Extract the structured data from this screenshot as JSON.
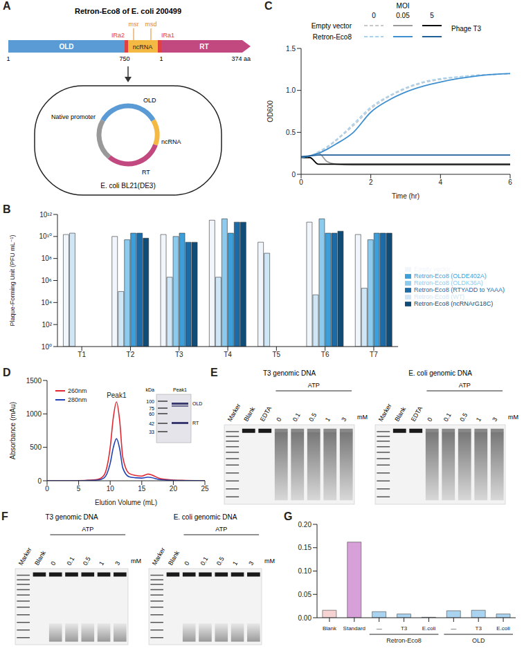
{
  "diagram": {
    "panel": "A",
    "title": "Retron-Eco8 of E. coli 200499",
    "genes": {
      "old": "OLD",
      "ncrna": "ncRNA",
      "rt": "RT",
      "msr": "msr",
      "msd": "msd",
      "ira2": "IRa2",
      "ira1": "IRa1"
    },
    "coordinates": {
      "old_start": "1",
      "old_end": "750",
      "rt_start": "1",
      "rt_end": "374 aa"
    },
    "cell": {
      "promoter": "Native promoter",
      "old": "OLD",
      "ncrna": "ncRNA",
      "rt": "RT",
      "strain": "E. coli BL21(DE3)"
    }
  },
  "chart_data": [
    {
      "panel": "B",
      "type": "bar",
      "categories": [
        "T1",
        "T2",
        "T3",
        "T4",
        "T5",
        "T6",
        "T7"
      ],
      "y_label": "Plaque-Forming Unit (PFU mL⁻¹)",
      "log": "y",
      "ylim": [
        1,
        1000000000000.0
      ],
      "yticks": [
        {
          "value": 1,
          "label": "10⁰"
        },
        {
          "value": 100,
          "label": "10²"
        },
        {
          "value": 10000,
          "label": "10⁴"
        },
        {
          "value": 1000000,
          "label": "10⁶"
        },
        {
          "value": 100000000,
          "label": "10⁸"
        },
        {
          "value": 10000000000,
          "label": "10¹⁰"
        },
        {
          "value": 1000000000000,
          "label": "10¹²"
        }
      ],
      "legend": "right",
      "series": [
        {
          "name": "Empty vector",
          "color": "#f0f6fb",
          "values": [
            15000000000.0,
            10000000000.0,
            15000000000.0,
            300000000000.0,
            3000000000.0,
            200000000000.0,
            15000000000.0
          ]
        },
        {
          "name": "Retron-Eco8 (WT)",
          "color": "#cfe6f6",
          "values": [
            20000000000.0,
            100000.0,
            2000000.0,
            2000000.0,
            300000000.0,
            50000.0,
            200000.0
          ]
        },
        {
          "name": "Retron-Eco8 (OLDK36A)",
          "color": "#8ccbee",
          "values": [
            null,
            5000000000.0,
            10000000000.0,
            400000000000.0,
            null,
            400000000000.0,
            5000000000.0
          ]
        },
        {
          "name": "Retron-Eco8 (OLDE402A)",
          "color": "#3c9fd9",
          "values": [
            null,
            20000000000.0,
            20000000000.0,
            20000000000.0,
            null,
            20000000000.0,
            20000000000.0
          ]
        },
        {
          "name": "Retron-Eco8 (RTYADD to YAAA)",
          "color": "#1c6aa6",
          "values": [
            null,
            20000000000.0,
            3000000000.0,
            200000000000.0,
            null,
            20000000000.0,
            20000000000.0
          ]
        },
        {
          "name": "Retron-Eco8 (ncRNArG18C)",
          "color": "#0f4c78",
          "values": [
            null,
            7000000000.0,
            3000000000.0,
            200000000000.0,
            null,
            30000000000.0,
            20000000000.0
          ]
        }
      ]
    },
    {
      "panel": "C",
      "type": "line",
      "title": "Phage T3",
      "legend_title": "MOI",
      "x_label": "Time (hr)",
      "y_label": "OD600",
      "x": [
        0,
        0.25,
        0.5,
        0.75,
        1,
        1.5,
        2,
        2.5,
        3,
        3.5,
        4,
        4.5,
        5,
        5.5,
        6
      ],
      "xlim": [
        0,
        6
      ],
      "xticks": [
        0,
        2,
        4,
        6
      ],
      "ylim": [
        0,
        1.5
      ],
      "yticks": [
        0,
        0.5,
        {
          "value": 1,
          "label": "1.0"
        },
        1.5
      ],
      "series": [
        {
          "name": "Empty vector",
          "moi": 0,
          "color": "#c8c8c8",
          "line_style": "dashed",
          "values": [
            0.2,
            0.22,
            0.26,
            0.32,
            0.4,
            0.58,
            0.78,
            0.92,
            1.02,
            1.09,
            1.13,
            1.16,
            1.18,
            1.19,
            1.2
          ]
        },
        {
          "name": "Empty vector",
          "moi": 0.05,
          "color": "#999999",
          "line_style": "solid",
          "values": [
            0.2,
            0.22,
            0.25,
            0.15,
            0.12,
            0.11,
            0.11,
            0.11,
            0.11,
            0.11,
            0.11,
            0.11,
            0.11,
            0.11,
            0.11
          ]
        },
        {
          "name": "Empty vector",
          "moi": 5,
          "color": "#000000",
          "line_style": "solid",
          "values": [
            0.2,
            0.2,
            0.12,
            0.12,
            0.12,
            0.12,
            0.12,
            0.12,
            0.12,
            0.12,
            0.12,
            0.12,
            0.12,
            0.12,
            0.12
          ]
        },
        {
          "name": "Retron-Eco8",
          "moi": 0,
          "color": "#a9d2ee",
          "line_style": "dashed",
          "values": [
            0.2,
            0.22,
            0.27,
            0.33,
            0.41,
            0.6,
            0.8,
            0.93,
            1.03,
            1.1,
            1.14,
            1.16,
            1.18,
            1.19,
            1.2
          ]
        },
        {
          "name": "Retron-Eco8",
          "moi": 0.05,
          "color": "#3d8fd0",
          "line_style": "solid",
          "values": [
            0.2,
            0.22,
            0.25,
            0.3,
            0.36,
            0.5,
            0.74,
            0.88,
            0.98,
            1.05,
            1.1,
            1.14,
            1.17,
            1.19,
            1.2
          ]
        },
        {
          "name": "Retron-Eco8",
          "moi": 5,
          "color": "#1f5e96",
          "line_style": "solid",
          "values": [
            0.21,
            0.22,
            0.23,
            0.23,
            0.23,
            0.23,
            0.23,
            0.23,
            0.23,
            0.23,
            0.23,
            0.23,
            0.23,
            0.23,
            0.23
          ]
        }
      ]
    },
    {
      "panel": "D",
      "type": "line",
      "x_label": "Elution Volume (mL)",
      "y_label": "Absorbance (mAu)",
      "peak_label": "Peak1",
      "legend": "top-left",
      "x": [
        0,
        2,
        4,
        6,
        8,
        9,
        10,
        10.5,
        11,
        11.5,
        12,
        13,
        14,
        15,
        16,
        18,
        20,
        22,
        25
      ],
      "xlim": [
        0,
        25
      ],
      "xticks": [
        0,
        5,
        10,
        15,
        20,
        25
      ],
      "ylim": [
        0,
        1500
      ],
      "yticks": [
        0,
        500,
        1000,
        1500
      ],
      "series": [
        {
          "name": "260nm",
          "color": "#e0262f",
          "values": [
            0,
            0,
            0,
            5,
            20,
            80,
            500,
            950,
            1180,
            900,
            350,
            110,
            80,
            70,
            100,
            30,
            10,
            5,
            0
          ]
        },
        {
          "name": "280nm",
          "color": "#1f3fb4",
          "values": [
            0,
            0,
            0,
            3,
            10,
            40,
            260,
            500,
            630,
            480,
            190,
            60,
            45,
            40,
            55,
            15,
            5,
            2,
            0
          ]
        }
      ],
      "inset": {
        "title": "Peak1",
        "unit": "kDa",
        "markers": [
          100,
          75,
          60,
          42,
          33
        ],
        "bands": [
          "OLD",
          "RT"
        ]
      }
    },
    {
      "panel": "G",
      "type": "bar",
      "categories": [
        "Blank",
        "Standard",
        "—",
        "T3",
        "E.coli",
        "—",
        "T3",
        "E.coli"
      ],
      "groups": [
        null,
        null,
        "Retron-Eco8",
        "Retron-Eco8",
        "Retron-Eco8",
        "OLD",
        "OLD",
        "OLD"
      ],
      "values": [
        0.016,
        0.162,
        0.013,
        0.008,
        0.001,
        0.015,
        0.016,
        0.008
      ],
      "colors": [
        "#f5d3d3",
        "#d8a0d8",
        "#a9d3ef",
        "#a9d3ef",
        "#a9d3ef",
        "#a9d3ef",
        "#a9d3ef",
        "#a9d3ef"
      ],
      "ylim": [
        0,
        0.2
      ],
      "yticks": [
        {
          "value": 0,
          "label": "0.00"
        },
        0.05,
        {
          "value": 0.1,
          "label": "0.10"
        },
        0.15,
        {
          "value": 0.2,
          "label": "0.20"
        }
      ]
    }
  ],
  "gels": [
    {
      "panel": "E",
      "gels": [
        {
          "title": "T3 genomic DNA",
          "lanes": [
            "Marker",
            "Blank",
            "EDTA"
          ],
          "treatment": "ATP",
          "unit": "mM",
          "concentrations": [
            0,
            0.1,
            0.5,
            1,
            3
          ]
        },
        {
          "title": "E. coli genomic DNA",
          "lanes": [
            "Marker",
            "Blank",
            "EDTA"
          ],
          "treatment": "ATP",
          "unit": "mM",
          "concentrations": [
            0,
            0.1,
            0.5,
            1,
            3
          ]
        }
      ]
    },
    {
      "panel": "F",
      "gels": [
        {
          "title": "T3 genomic DNA",
          "lanes": [
            "Marker",
            "Blank"
          ],
          "treatment": "ATP",
          "unit": "mM",
          "concentrations": [
            0,
            0.1,
            0.5,
            1,
            3
          ]
        },
        {
          "title": "E. coli genomic DNA",
          "lanes": [
            "Marker",
            "Blank"
          ],
          "treatment": "ATP",
          "unit": "mM",
          "concentrations": [
            0,
            0.1,
            0.5,
            1,
            3
          ]
        }
      ]
    }
  ]
}
